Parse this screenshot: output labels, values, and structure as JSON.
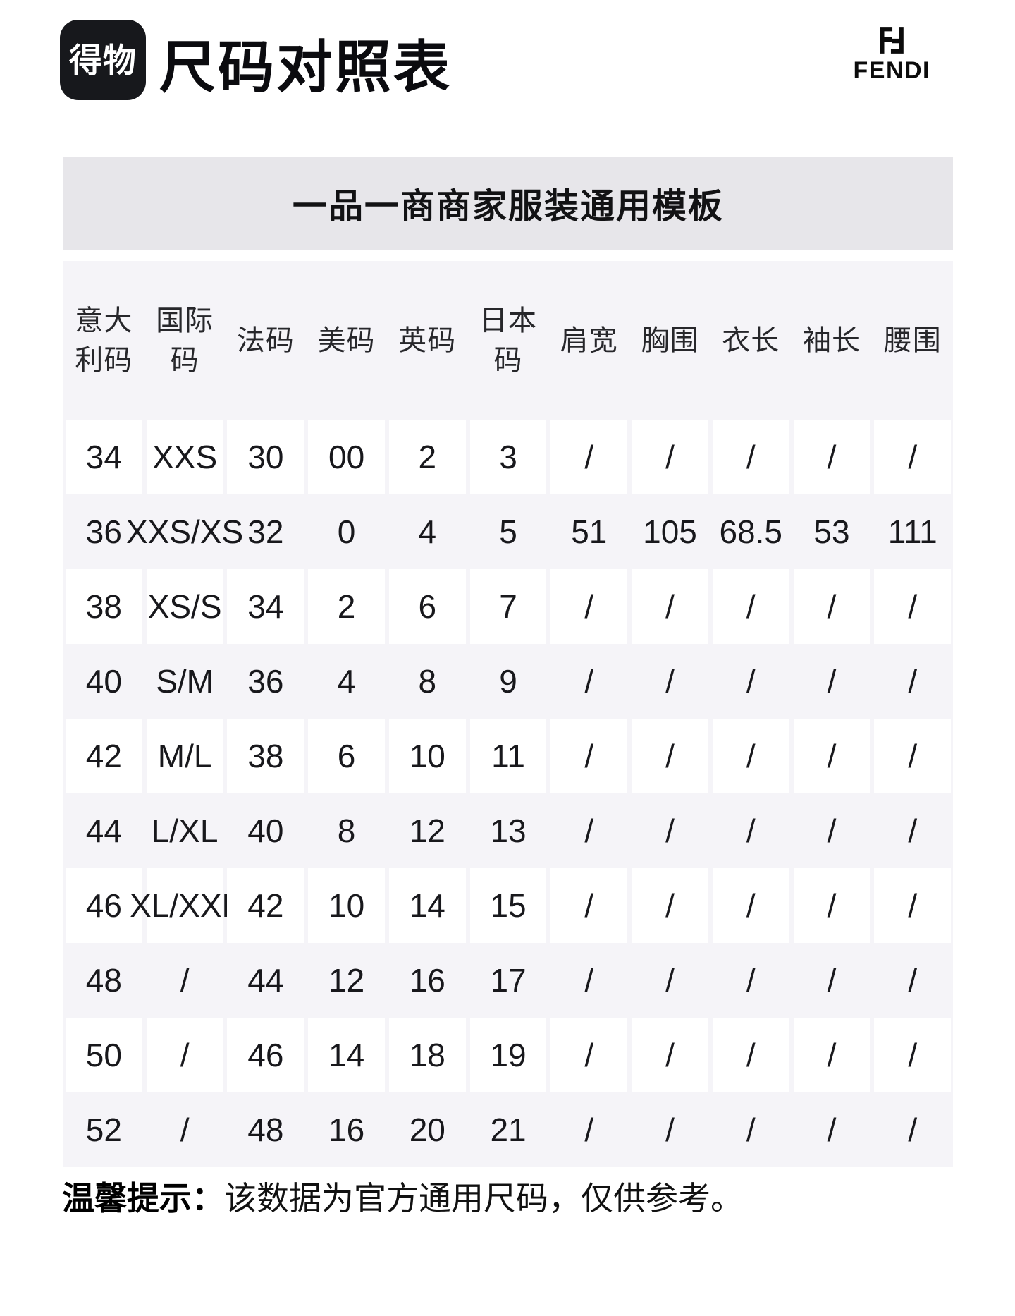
{
  "header": {
    "app_logo_text": "得物",
    "title": "尺码对照表",
    "brand": {
      "name": "FENDI",
      "icon": "fendi-ff-icon"
    }
  },
  "banner": {
    "title": "一品一商商家服装通用模板"
  },
  "table": {
    "headers": [
      "意大\n利码",
      "国际\n码",
      "法码",
      "美码",
      "英码",
      "日本\n码",
      "肩宽",
      "胸围",
      "衣长",
      "袖长",
      "腰围"
    ],
    "rows": [
      [
        "34",
        "XXS",
        "30",
        "00",
        "2",
        "3",
        "/",
        "/",
        "/",
        "/",
        "/"
      ],
      [
        "36",
        "XXS/XS",
        "32",
        "0",
        "4",
        "5",
        "51",
        "105",
        "68.5",
        "53",
        "111"
      ],
      [
        "38",
        "XS/S",
        "34",
        "2",
        "6",
        "7",
        "/",
        "/",
        "/",
        "/",
        "/"
      ],
      [
        "40",
        "S/M",
        "36",
        "4",
        "8",
        "9",
        "/",
        "/",
        "/",
        "/",
        "/"
      ],
      [
        "42",
        "M/L",
        "38",
        "6",
        "10",
        "11",
        "/",
        "/",
        "/",
        "/",
        "/"
      ],
      [
        "44",
        "L/XL",
        "40",
        "8",
        "12",
        "13",
        "/",
        "/",
        "/",
        "/",
        "/"
      ],
      [
        "46",
        "XL/XXL",
        "42",
        "10",
        "14",
        "15",
        "/",
        "/",
        "/",
        "/",
        "/"
      ],
      [
        "48",
        "/",
        "44",
        "12",
        "16",
        "17",
        "/",
        "/",
        "/",
        "/",
        "/"
      ],
      [
        "50",
        "/",
        "46",
        "14",
        "18",
        "19",
        "/",
        "/",
        "/",
        "/",
        "/"
      ],
      [
        "52",
        "/",
        "48",
        "16",
        "20",
        "21",
        "/",
        "/",
        "/",
        "/",
        "/"
      ]
    ]
  },
  "footer": {
    "label": "温馨提示：",
    "text": "该数据为官方通用尺码，仅供参考。"
  },
  "colors": {
    "page_bg": "#ffffff",
    "logo_bg": "#17181c",
    "banner_bg": "#e7e6ea",
    "table_bg": "#f5f4f8",
    "cell_bg": "#ffffff",
    "text": "#121214"
  }
}
